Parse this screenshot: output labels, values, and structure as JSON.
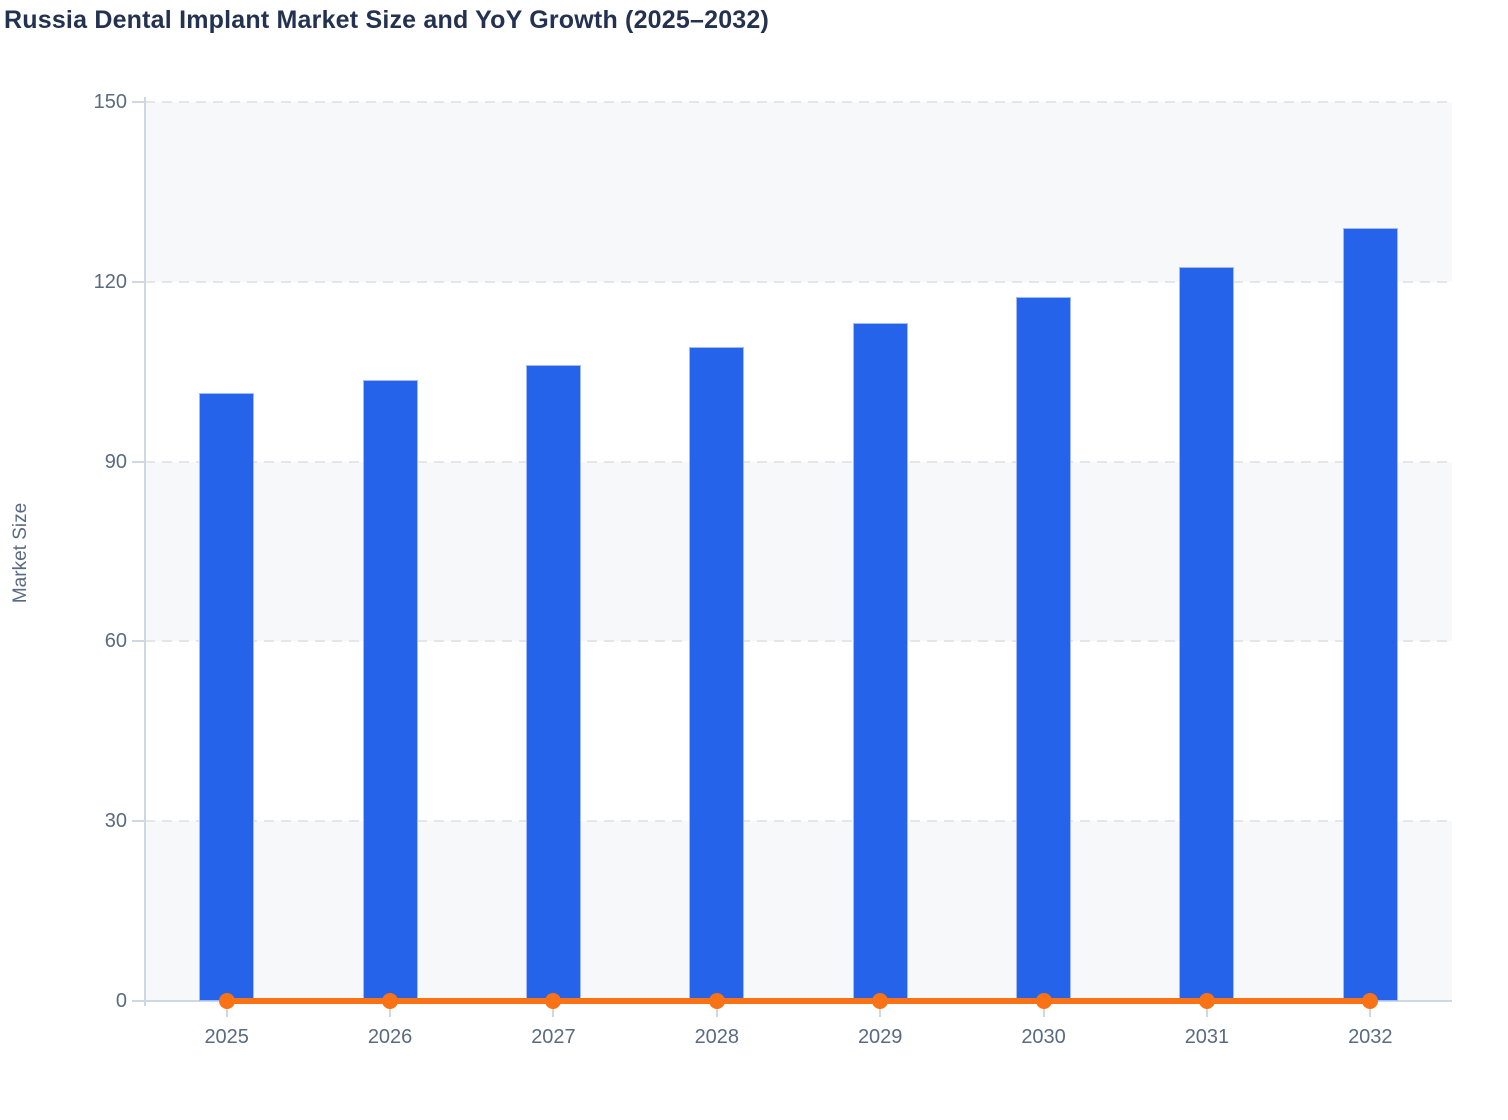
{
  "chart_data": {
    "type": "bar",
    "title": "Russia Dental Implant Market Size and YoY Growth (2025–2032)",
    "categories": [
      "2025",
      "2026",
      "2027",
      "2028",
      "2029",
      "2030",
      "2031",
      "2032"
    ],
    "series": [
      {
        "name": "Market Size",
        "type": "bar",
        "color": "#2563eb",
        "values": [
          101.4,
          103.6,
          106.2,
          109.1,
          113.1,
          117.4,
          122.4,
          128.9
        ]
      },
      {
        "name": "YoY Growth",
        "type": "line",
        "color": "#f97316",
        "values": [
          0,
          0,
          0,
          0,
          0,
          0,
          0,
          0
        ]
      }
    ],
    "xlabel": "",
    "ylabel": "Market Size",
    "ylim": [
      0,
      150
    ],
    "yticks": [
      0,
      30,
      60,
      90,
      120,
      150
    ],
    "grid": "horizontal dashed",
    "plot_bands": "alternating light fill between y gridlines",
    "legend_position": "none"
  },
  "colors": {
    "bar": "#2563eb",
    "bar_edge": "#a4baf3",
    "line": "#f97316",
    "band_fill": "#f7f8fa",
    "gridline": "#e4e6ea",
    "axis": "#cfd6e4",
    "tick_text": "#5a6b80",
    "title_text": "#233250",
    "background": "#ffffff"
  }
}
